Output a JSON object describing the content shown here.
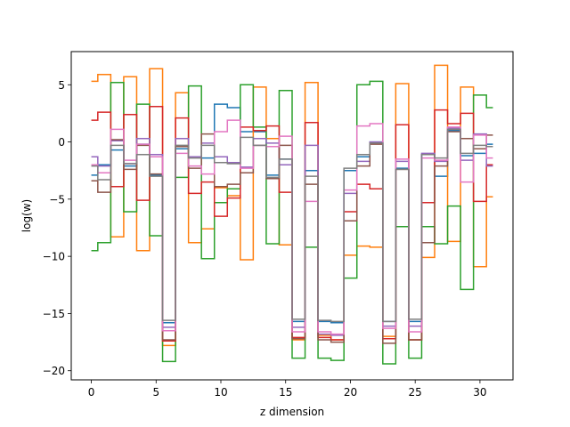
{
  "chart_data": {
    "type": "line",
    "step": "mid",
    "title": "",
    "xlabel": "z dimension",
    "ylabel": "log(w)",
    "xlim": [
      -1.55,
      32.55
    ],
    "ylim": [
      -20.8,
      7.9
    ],
    "xticks": [
      0,
      5,
      10,
      15,
      20,
      25,
      30
    ],
    "yticks": [
      -20,
      -15,
      -10,
      -5,
      0,
      5
    ],
    "grid": false,
    "x": [
      0,
      1,
      2,
      3,
      4,
      5,
      6,
      7,
      8,
      9,
      10,
      11,
      12,
      13,
      14,
      15,
      16,
      17,
      18,
      19,
      20,
      21,
      22,
      23,
      24,
      25,
      26,
      27,
      28,
      29,
      30,
      31
    ],
    "series": [
      {
        "color": "#1f77b4",
        "values": [
          -2.9,
          -2.0,
          -0.7,
          -2.1,
          -0.2,
          -2.9,
          -15.8,
          -0.6,
          -1.3,
          -1.4,
          3.3,
          3.0,
          0.9,
          0.9,
          -2.9,
          -1.5,
          -15.7,
          -2.5,
          -15.7,
          -15.8,
          -2.5,
          -1.3,
          0.0,
          -15.7,
          -2.3,
          -15.7,
          -1.1,
          -3.0,
          1.0,
          -1.2,
          -1.0,
          -0.2
        ]
      },
      {
        "color": "#ff7f0e",
        "values": [
          5.3,
          5.9,
          -8.3,
          5.7,
          -9.5,
          6.4,
          -17.8,
          4.3,
          -8.8,
          -7.6,
          -4.0,
          -4.7,
          -10.3,
          4.8,
          0.3,
          -9.0,
          -17.3,
          5.2,
          -16.9,
          -17.3,
          -9.9,
          -9.1,
          -9.2,
          -17.0,
          5.1,
          -17.3,
          -10.1,
          6.7,
          -8.7,
          4.8,
          -10.9,
          -4.8
        ]
      },
      {
        "color": "#2ca02c",
        "values": [
          -9.5,
          -8.8,
          5.2,
          -6.1,
          3.3,
          -8.2,
          -19.2,
          -3.1,
          4.9,
          -10.2,
          -5.3,
          -4.1,
          5.0,
          1.3,
          -8.9,
          4.5,
          -18.9,
          -9.2,
          -18.9,
          -19.1,
          -11.9,
          5.0,
          5.3,
          -19.4,
          -7.4,
          -18.9,
          -7.4,
          -8.9,
          -5.6,
          -12.9,
          4.1,
          3.0
        ]
      },
      {
        "color": "#d62728",
        "values": [
          1.9,
          2.6,
          -3.9,
          2.4,
          -5.1,
          3.1,
          -17.4,
          2.1,
          -4.5,
          -3.5,
          -6.5,
          -4.9,
          1.3,
          1.0,
          1.4,
          -4.4,
          -17.1,
          1.7,
          -17.1,
          -17.3,
          -6.1,
          -3.7,
          -4.1,
          -17.2,
          1.5,
          -17.3,
          -5.3,
          2.8,
          1.6,
          2.5,
          -5.2,
          -2.0
        ]
      },
      {
        "color": "#9467bd",
        "values": [
          -1.3,
          -2.1,
          0.1,
          -1.9,
          0.3,
          -1.1,
          -16.2,
          0.3,
          -1.3,
          -0.1,
          -1.3,
          -1.8,
          -2.2,
          0.3,
          -0.1,
          -2.0,
          -16.2,
          -0.3,
          -16.8,
          -16.9,
          -4.5,
          -1.7,
          0.0,
          -16.1,
          -1.7,
          -16.1,
          -1.0,
          -1.7,
          1.2,
          -1.6,
          0.7,
          -2.1
        ]
      },
      {
        "color": "#8c564b",
        "values": [
          -3.4,
          -4.4,
          0.2,
          -2.4,
          -0.3,
          -2.8,
          -17.3,
          -0.4,
          -2.3,
          0.7,
          -3.9,
          -3.7,
          -2.7,
          -0.3,
          -3.2,
          -0.3,
          -17.2,
          -3.7,
          -17.3,
          -17.5,
          -6.9,
          -2.1,
          -0.2,
          -17.6,
          -2.4,
          -17.3,
          -8.8,
          -2.1,
          0.9,
          0.3,
          -0.6,
          0.6
        ]
      },
      {
        "color": "#e377c2",
        "values": [
          -2.0,
          -2.7,
          1.1,
          -1.6,
          -0.2,
          -1.3,
          -16.5,
          -1.0,
          -2.1,
          -2.8,
          0.9,
          1.9,
          -2.3,
          -0.3,
          -0.4,
          0.5,
          -16.6,
          -5.2,
          -16.6,
          -16.8,
          -4.2,
          1.4,
          1.6,
          -16.3,
          -1.5,
          -16.6,
          -1.4,
          -1.6,
          1.3,
          -3.5,
          0.6,
          -1.4
        ]
      },
      {
        "color": "#7f7f7f",
        "values": [
          -2.1,
          -3.3,
          -0.3,
          -1.9,
          -1.1,
          -3.0,
          -15.6,
          -0.3,
          -1.4,
          -0.3,
          -1.8,
          -1.9,
          0.4,
          -0.3,
          -3.1,
          -1.5,
          -15.5,
          -3.0,
          -15.6,
          -15.7,
          -2.3,
          -1.1,
          -0.1,
          -15.7,
          -2.4,
          -15.5,
          -1.1,
          -1.4,
          1.1,
          -1.0,
          -0.3,
          -0.4
        ]
      }
    ]
  }
}
